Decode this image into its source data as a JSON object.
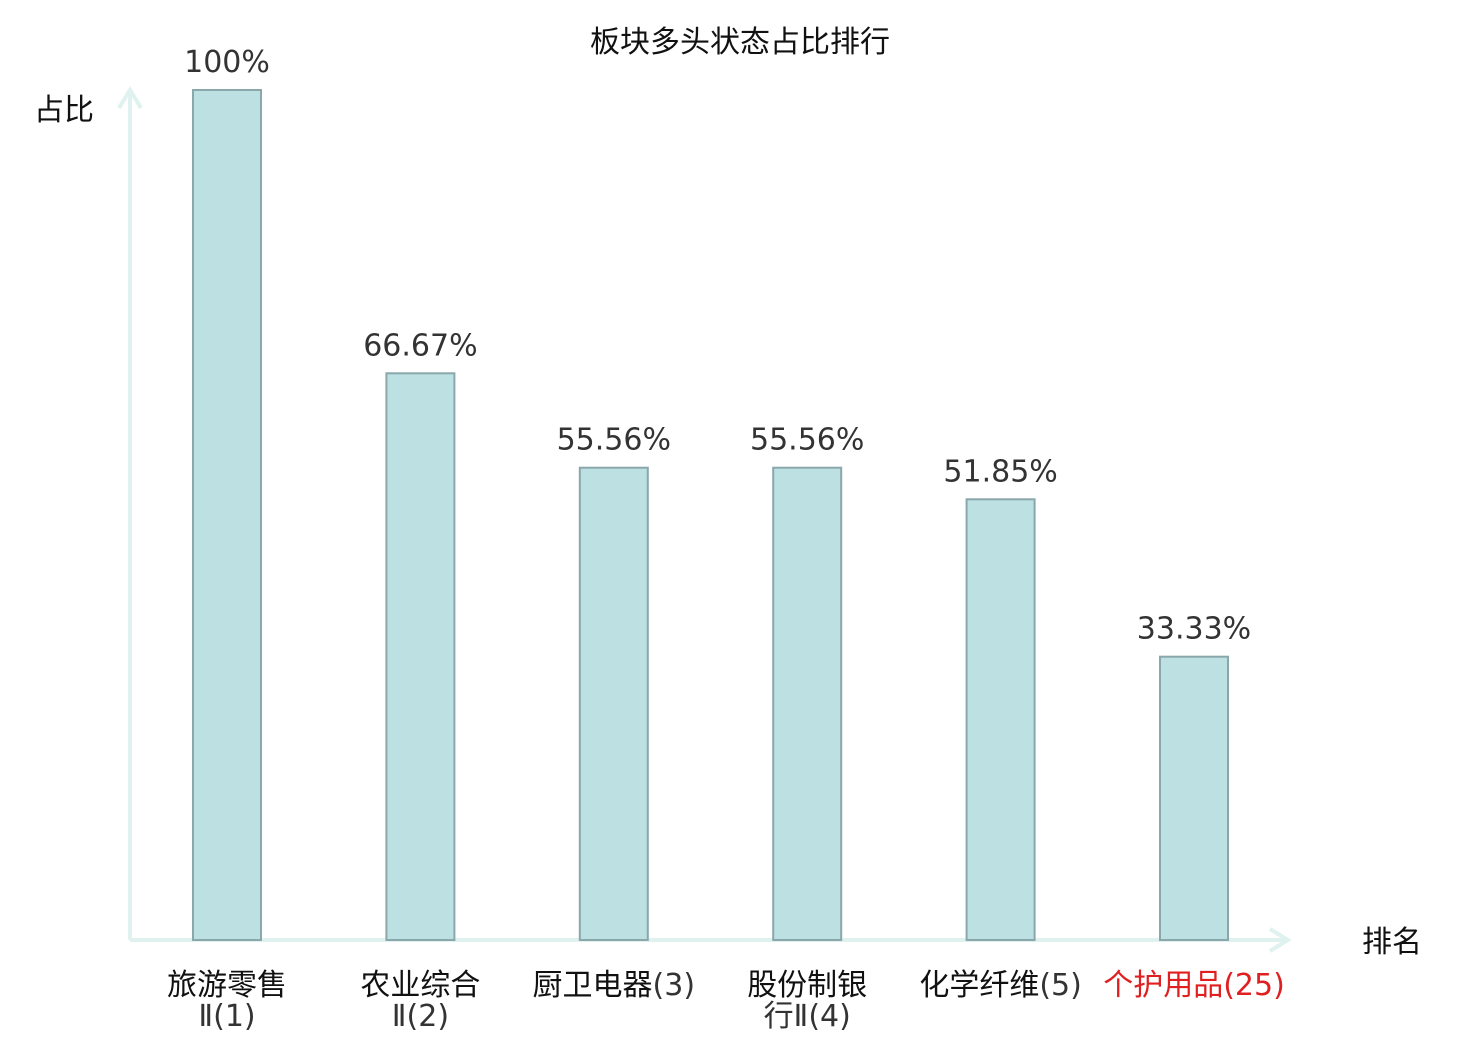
{
  "chart_data": {
    "type": "bar",
    "title": "板块多头状态占比排行",
    "ylabel": "占比",
    "xlabel": "排名",
    "ylim": [
      0,
      100
    ],
    "grid": false,
    "categories": [
      {
        "name": "旅游零售",
        "rank": "Ⅱ(1)",
        "highlight": false
      },
      {
        "name": "农业综合",
        "rank": "Ⅱ(2)",
        "highlight": false
      },
      {
        "name": "厨卫电器",
        "rank": "(3)",
        "highlight": false
      },
      {
        "name": "股份制银",
        "rank": "行Ⅱ(4)",
        "highlight": false
      },
      {
        "name": "化学纤维",
        "rank": "(5)",
        "highlight": false
      },
      {
        "name": "个护用品",
        "rank": "(25)",
        "highlight": true
      }
    ],
    "values": [
      100,
      66.67,
      55.56,
      55.56,
      51.85,
      33.33
    ],
    "value_labels": [
      "100%",
      "66.67%",
      "55.56%",
      "55.56%",
      "51.85%",
      "33.33%"
    ],
    "colors": {
      "bar_fill": "#bde0e3",
      "bar_stroke": "#8aa7ab",
      "axis": "#e0f2ef",
      "highlight": "#e02020",
      "text": "#111111"
    }
  }
}
